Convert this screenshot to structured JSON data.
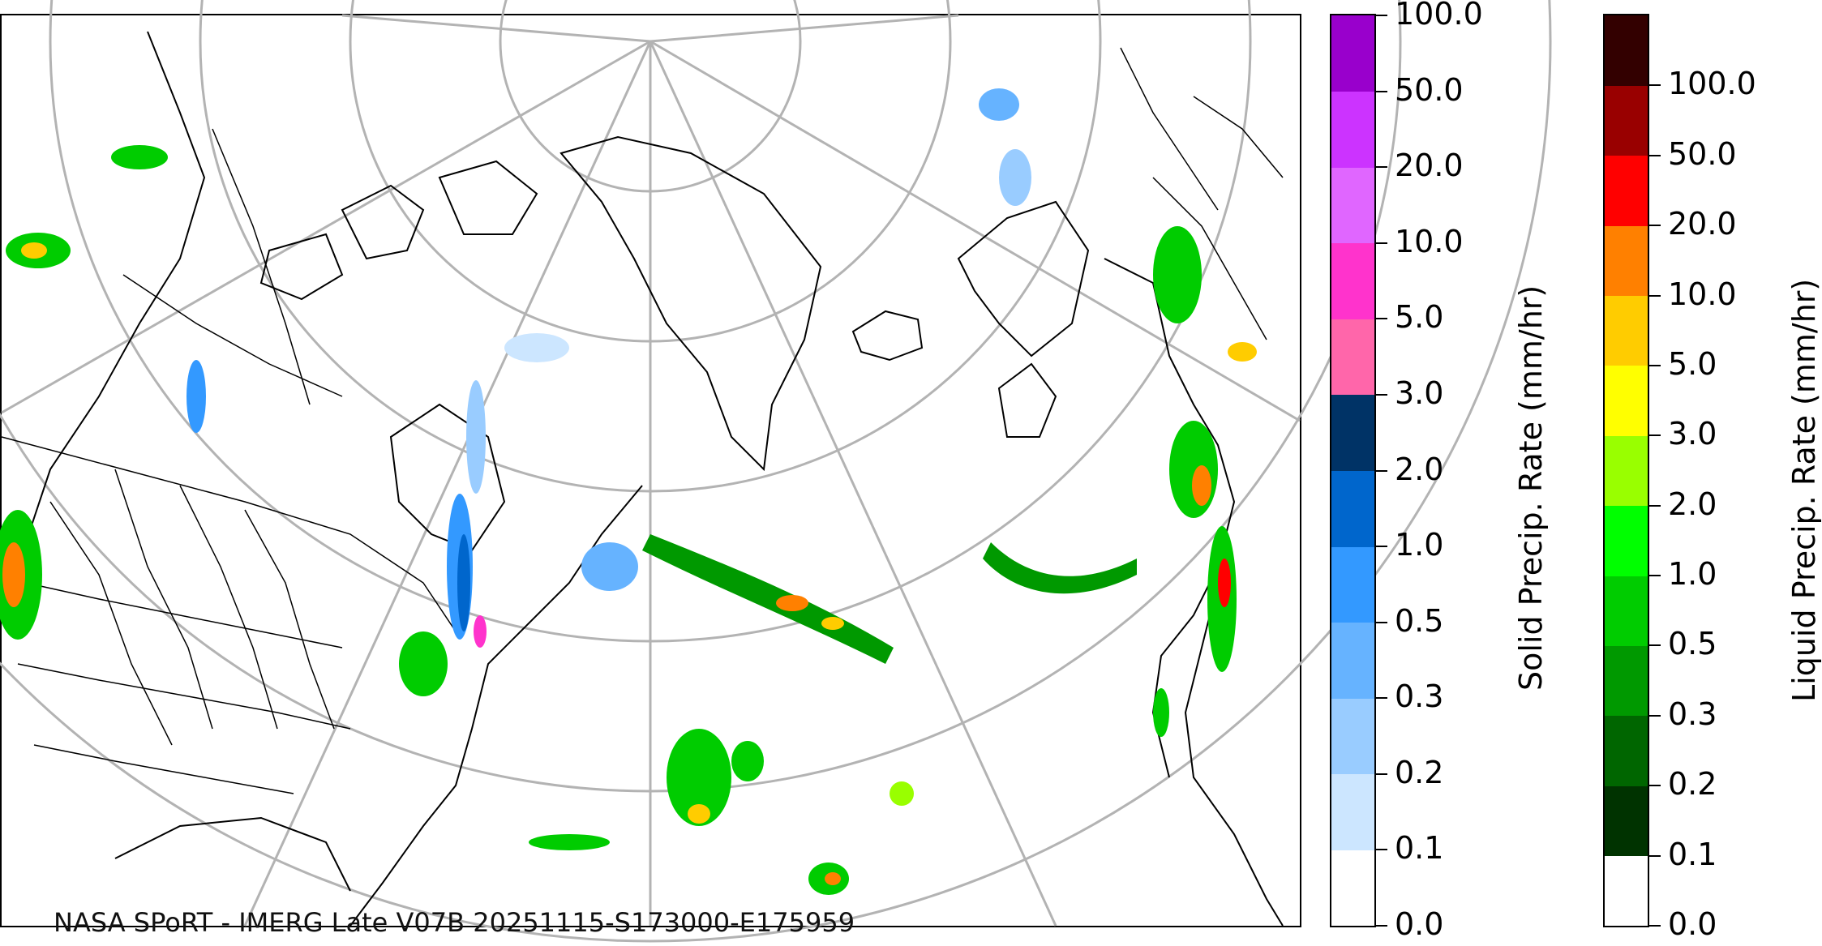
{
  "credit": "NASA SPoRT - IMERG Late V07B 20251115-S173000-E175959",
  "map": {
    "region": "North Atlantic and surrounding continents",
    "features": [
      "coastlines",
      "country-borders",
      "us-state-borders",
      "graticule"
    ]
  },
  "colorbars": {
    "solid": {
      "title": "Solid Precip. Rate (mm/hr)",
      "ticks": [
        "0.0",
        "0.1",
        "0.2",
        "0.3",
        "0.5",
        "1.0",
        "2.0",
        "3.0",
        "5.0",
        "10.0",
        "20.0",
        "50.0",
        "100.0"
      ],
      "colors": [
        "#ffffff",
        "#cce6ff",
        "#99ccff",
        "#66b3ff",
        "#3399ff",
        "#0066cc",
        "#003366",
        "#ff66aa",
        "#ff33cc",
        "#e066ff",
        "#cc33ff",
        "#9900cc"
      ]
    },
    "liquid": {
      "title": "Liquid Precip. Rate (mm/hr)",
      "ticks": [
        "0.0",
        "0.1",
        "0.2",
        "0.3",
        "0.5",
        "1.0",
        "2.0",
        "3.0",
        "5.0",
        "10.0",
        "20.0",
        "50.0",
        "100.0"
      ],
      "colors": [
        "#ffffff",
        "#003300",
        "#006600",
        "#009900",
        "#00cc00",
        "#00ff00",
        "#99ff00",
        "#ffff00",
        "#ffcc00",
        "#ff8000",
        "#ff0000",
        "#990000",
        "#330000"
      ]
    }
  }
}
